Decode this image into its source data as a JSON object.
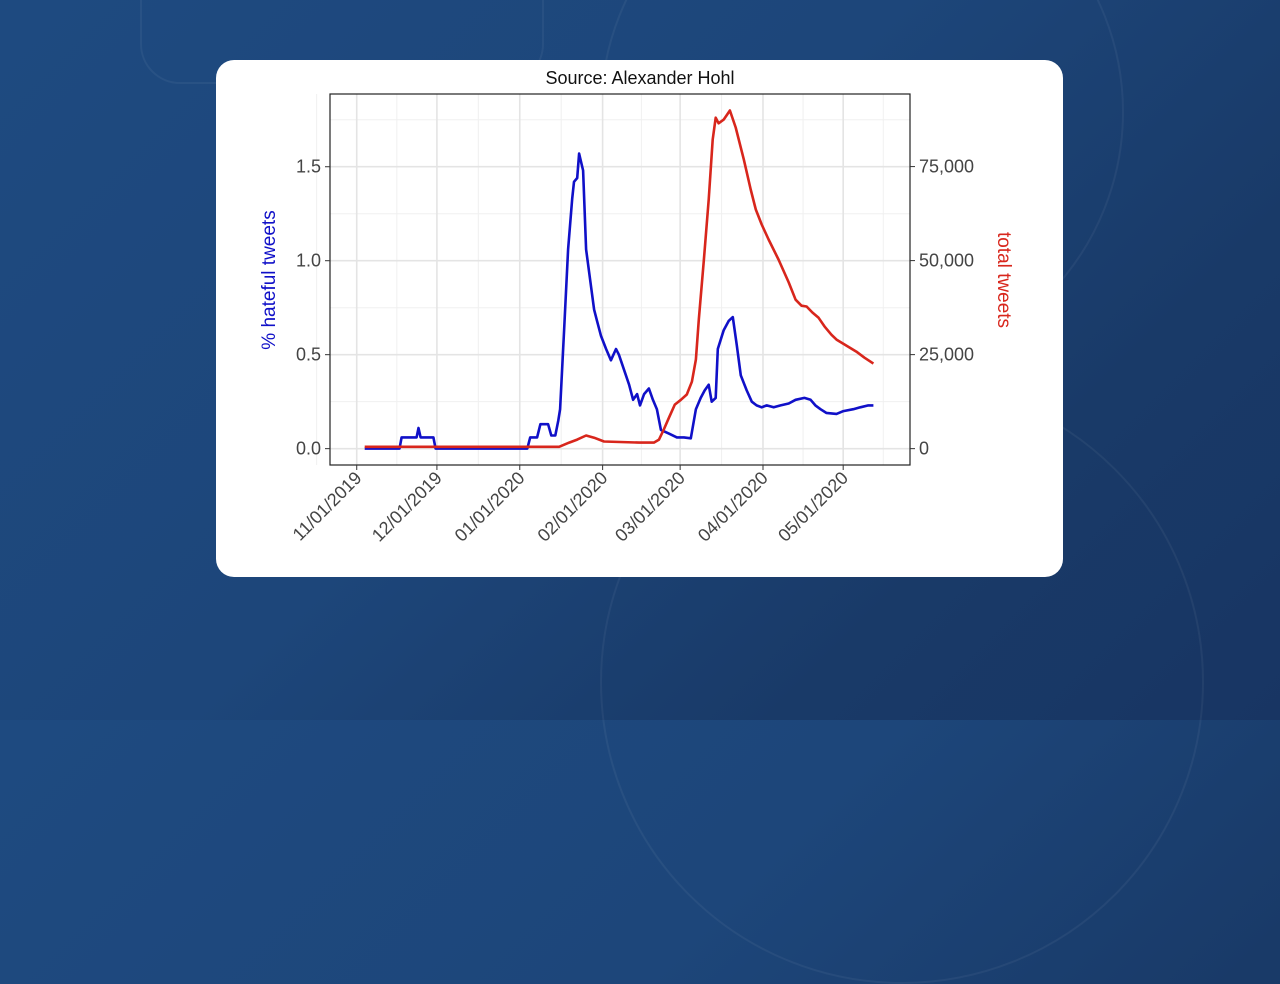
{
  "chart_data": {
    "type": "line",
    "title": "Source: Alexander Hohl",
    "x_unit": "days since 11/01/2019",
    "xlim": [
      -10,
      207
    ],
    "x_ticks": [
      {
        "day": 0,
        "label": "11/01/2019"
      },
      {
        "day": 30,
        "label": "12/01/2019"
      },
      {
        "day": 61,
        "label": "01/01/2020"
      },
      {
        "day": 92,
        "label": "02/01/2020"
      },
      {
        "day": 121,
        "label": "03/01/2020"
      },
      {
        "day": 152,
        "label": "04/01/2020"
      },
      {
        "day": 182,
        "label": "05/01/2020"
      }
    ],
    "y_left": {
      "label": "% hateful tweets",
      "color": "#1010c8",
      "ylim": [
        -0.087,
        1.887
      ],
      "ticks": [
        {
          "v": 0,
          "label": "0.0"
        },
        {
          "v": 0.5,
          "label": "0.5"
        },
        {
          "v": 1,
          "label": "1.0"
        },
        {
          "v": 1.5,
          "label": "1.5"
        }
      ]
    },
    "y_right": {
      "label": "total tweets",
      "color": "#d8261c",
      "ylim": [
        -4350,
        94300
      ],
      "ticks": [
        {
          "v": 0,
          "label": "0"
        },
        {
          "v": 25000,
          "label": "25,000"
        },
        {
          "v": 50000,
          "label": "50,000"
        },
        {
          "v": 75000,
          "label": "75,000"
        }
      ]
    },
    "grid": true,
    "series": [
      {
        "name": "% hateful tweets",
        "axis": "left",
        "color": "#1010c8",
        "points": [
          [
            3,
            0
          ],
          [
            16,
            0
          ],
          [
            16.8,
            0.06
          ],
          [
            22.4,
            0.06
          ],
          [
            23.1,
            0.11
          ],
          [
            23.9,
            0.06
          ],
          [
            28.7,
            0.06
          ],
          [
            29.5,
            0
          ],
          [
            63.8,
            0
          ],
          [
            64.9,
            0.06
          ],
          [
            67.5,
            0.06
          ],
          [
            68.7,
            0.13
          ],
          [
            71.6,
            0.13
          ],
          [
            72.8,
            0.07
          ],
          [
            74.3,
            0.07
          ],
          [
            75.4,
            0.15
          ],
          [
            76.1,
            0.21
          ],
          [
            77.6,
            0.63
          ],
          [
            79.1,
            1.06
          ],
          [
            80.6,
            1.33
          ],
          [
            81.3,
            1.42
          ],
          [
            82.5,
            1.44
          ],
          [
            83.2,
            1.57
          ],
          [
            84.7,
            1.48
          ],
          [
            85.8,
            1.06
          ],
          [
            87.3,
            0.9
          ],
          [
            88.8,
            0.74
          ],
          [
            89.9,
            0.68
          ],
          [
            91.4,
            0.6
          ],
          [
            93.3,
            0.53
          ],
          [
            95.1,
            0.47
          ],
          [
            97,
            0.53
          ],
          [
            98.1,
            0.5
          ],
          [
            100,
            0.42
          ],
          [
            101.9,
            0.34
          ],
          [
            103.4,
            0.26
          ],
          [
            104.9,
            0.29
          ],
          [
            106,
            0.23
          ],
          [
            107.5,
            0.29
          ],
          [
            109.3,
            0.32
          ],
          [
            110.8,
            0.26
          ],
          [
            112.3,
            0.21
          ],
          [
            113.8,
            0.1
          ],
          [
            116.8,
            0.08
          ],
          [
            119.8,
            0.06
          ],
          [
            122.4,
            0.06
          ],
          [
            125,
            0.055
          ],
          [
            126.9,
            0.21
          ],
          [
            128.7,
            0.27
          ],
          [
            130.2,
            0.31
          ],
          [
            131.7,
            0.34
          ],
          [
            132.8,
            0.25
          ],
          [
            134.3,
            0.27
          ],
          [
            135.1,
            0.53
          ],
          [
            137.3,
            0.63
          ],
          [
            139.2,
            0.68
          ],
          [
            140.7,
            0.7
          ],
          [
            142.2,
            0.55
          ],
          [
            143.7,
            0.39
          ],
          [
            145.9,
            0.31
          ],
          [
            147.8,
            0.25
          ],
          [
            149.6,
            0.23
          ],
          [
            151.5,
            0.22
          ],
          [
            153.4,
            0.23
          ],
          [
            156,
            0.22
          ],
          [
            158.6,
            0.23
          ],
          [
            161.6,
            0.24
          ],
          [
            164.2,
            0.26
          ],
          [
            167.5,
            0.27
          ],
          [
            169.8,
            0.26
          ],
          [
            171.6,
            0.23
          ],
          [
            173.5,
            0.21
          ],
          [
            175.7,
            0.19
          ],
          [
            179.5,
            0.185
          ],
          [
            182.1,
            0.2
          ],
          [
            185.8,
            0.21
          ],
          [
            188.4,
            0.22
          ],
          [
            191.4,
            0.23
          ],
          [
            193.3,
            0.23
          ]
        ]
      },
      {
        "name": "total tweets",
        "axis": "right",
        "color": "#d8261c",
        "points": [
          [
            3,
            500
          ],
          [
            75.7,
            500
          ],
          [
            79.5,
            1600
          ],
          [
            82.5,
            2400
          ],
          [
            85.8,
            3500
          ],
          [
            88.8,
            2900
          ],
          [
            92.5,
            1900
          ],
          [
            105.6,
            1600
          ],
          [
            111.2,
            1600
          ],
          [
            113.1,
            2400
          ],
          [
            114.9,
            5100
          ],
          [
            116.8,
            8200
          ],
          [
            119,
            11700
          ],
          [
            121.3,
            13000
          ],
          [
            123.5,
            14400
          ],
          [
            125.4,
            17800
          ],
          [
            126.9,
            23700
          ],
          [
            128,
            34300
          ],
          [
            129.9,
            50300
          ],
          [
            131.7,
            66200
          ],
          [
            133.2,
            82200
          ],
          [
            134.3,
            88000
          ],
          [
            135.4,
            86500
          ],
          [
            137.3,
            87500
          ],
          [
            139.6,
            89900
          ],
          [
            141.8,
            85400
          ],
          [
            144.8,
            76900
          ],
          [
            147.4,
            68900
          ],
          [
            149.3,
            63600
          ],
          [
            151.5,
            59600
          ],
          [
            154.1,
            55600
          ],
          [
            157.8,
            50300
          ],
          [
            161.6,
            44200
          ],
          [
            164.2,
            39600
          ],
          [
            166.4,
            38000
          ],
          [
            168.3,
            37800
          ],
          [
            170.5,
            36200
          ],
          [
            172.8,
            34800
          ],
          [
            175,
            32500
          ],
          [
            177.6,
            30300
          ],
          [
            179.5,
            29000
          ],
          [
            183.2,
            27400
          ],
          [
            186.9,
            25800
          ],
          [
            189.9,
            24200
          ],
          [
            193.3,
            22600
          ]
        ]
      }
    ]
  }
}
